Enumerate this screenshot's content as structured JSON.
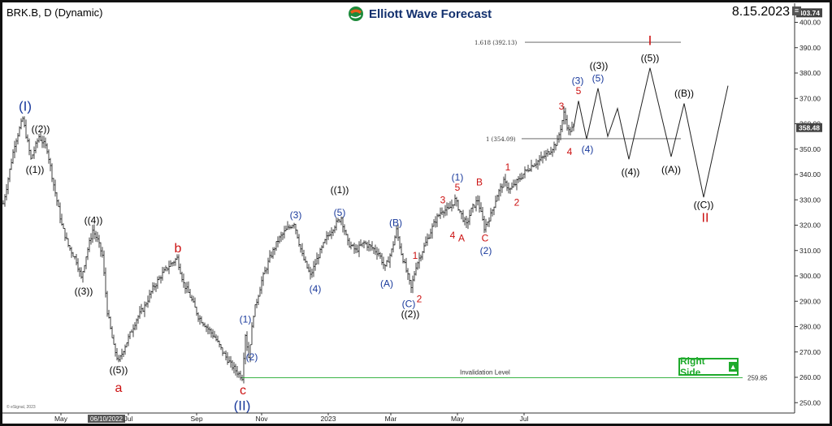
{
  "header": {
    "ticker": "BRK.B, D (Dynamic)",
    "brand": "Elliott Wave Forecast",
    "date": "8.15.2023"
  },
  "right_side_badge": "Right Side",
  "copyright": "© eSignal, 2023",
  "colors": {
    "blue": "#1a3a9c",
    "red": "#cc1111",
    "black": "#000000",
    "green": "#1faa2c"
  },
  "chart_data": {
    "type": "line",
    "subtype": "ohlc-daily-elliott-wave",
    "y_axis": {
      "range": [
        247,
        405
      ],
      "ticks": [
        250,
        260,
        270,
        280,
        290,
        300,
        310,
        320,
        330,
        340,
        350,
        360,
        370,
        380,
        390,
        400
      ],
      "position": "right"
    },
    "x_axis": {
      "labels": [
        "May",
        "06/10/2022",
        "Jul",
        "Sep",
        "Nov",
        "2023",
        "Mar",
        "May",
        "Jul"
      ]
    },
    "price_tags": {
      "high": "403.74",
      "last": "358.48"
    },
    "price_path": [
      [
        0,
        322
      ],
      [
        8,
        335
      ],
      [
        18,
        352
      ],
      [
        28,
        362
      ],
      [
        38,
        346
      ],
      [
        48,
        355
      ],
      [
        58,
        350
      ],
      [
        66,
        336
      ],
      [
        76,
        320
      ],
      [
        84,
        312
      ],
      [
        94,
        306
      ],
      [
        100,
        299
      ],
      [
        106,
        308
      ],
      [
        114,
        318
      ],
      [
        120,
        314
      ],
      [
        126,
        308
      ],
      [
        132,
        286
      ],
      [
        140,
        272
      ],
      [
        146,
        266
      ],
      [
        152,
        271
      ],
      [
        160,
        277
      ],
      [
        168,
        283
      ],
      [
        178,
        288
      ],
      [
        188,
        295
      ],
      [
        198,
        300
      ],
      [
        208,
        304
      ],
      [
        218,
        307
      ],
      [
        226,
        297
      ],
      [
        234,
        292
      ],
      [
        244,
        284
      ],
      [
        254,
        280
      ],
      [
        264,
        276
      ],
      [
        274,
        270
      ],
      [
        284,
        265
      ],
      [
        292,
        262
      ],
      [
        298,
        260
      ],
      [
        302,
        277
      ],
      [
        306,
        268
      ],
      [
        312,
        285
      ],
      [
        322,
        298
      ],
      [
        332,
        307
      ],
      [
        342,
        314
      ],
      [
        352,
        318
      ],
      [
        362,
        321
      ],
      [
        372,
        308
      ],
      [
        382,
        300
      ],
      [
        392,
        308
      ],
      [
        402,
        315
      ],
      [
        412,
        320
      ],
      [
        420,
        323
      ],
      [
        428,
        313
      ],
      [
        438,
        310
      ],
      [
        448,
        313
      ],
      [
        458,
        311
      ],
      [
        466,
        309
      ],
      [
        474,
        303
      ],
      [
        482,
        310
      ],
      [
        488,
        318
      ],
      [
        494,
        309
      ],
      [
        500,
        302
      ],
      [
        506,
        295
      ],
      [
        512,
        304
      ],
      [
        520,
        310
      ],
      [
        528,
        316
      ],
      [
        536,
        322
      ],
      [
        544,
        326
      ],
      [
        552,
        326
      ],
      [
        560,
        330
      ],
      [
        568,
        324
      ],
      [
        574,
        320
      ],
      [
        580,
        326
      ],
      [
        588,
        330
      ],
      [
        596,
        319
      ],
      [
        604,
        324
      ],
      [
        612,
        332
      ],
      [
        620,
        337
      ],
      [
        628,
        334
      ],
      [
        636,
        337
      ],
      [
        646,
        341
      ],
      [
        656,
        344
      ],
      [
        666,
        346
      ],
      [
        676,
        349
      ],
      [
        686,
        353
      ],
      [
        694,
        364
      ],
      [
        700,
        357
      ],
      [
        706,
        358.5
      ]
    ],
    "projection_path": [
      [
        706,
        358.5
      ],
      [
        712,
        369
      ],
      [
        722,
        354
      ],
      [
        736,
        374
      ],
      [
        748,
        355
      ],
      [
        760,
        366
      ],
      [
        774,
        346
      ],
      [
        800,
        382
      ],
      [
        826,
        347
      ],
      [
        842,
        368
      ],
      [
        866,
        331
      ],
      [
        896,
        375
      ]
    ],
    "levels": [
      {
        "label": "1.618 (392.13)",
        "value": 392.13,
        "x_from": 646,
        "x_to": 838,
        "color": "#555555"
      },
      {
        "label": "1 (354.09)",
        "value": 354.09,
        "x_from": 642,
        "x_to": 838,
        "color": "#555555"
      },
      {
        "label": "Invalidation Level",
        "value_label": "259.85",
        "value": 259.85,
        "x_from": 298,
        "x_to": 914,
        "color": "#1faa2c"
      }
    ],
    "wave_labels": [
      {
        "text": "(I)",
        "x": 31,
        "price": 367,
        "color": "blue",
        "size": 17
      },
      {
        "text": "((2))",
        "x": 50,
        "price": 358,
        "color": "black",
        "size": 12
      },
      {
        "text": "((1))",
        "x": 43,
        "price": 342,
        "color": "black",
        "size": 12
      },
      {
        "text": "((4))",
        "x": 115,
        "price": 322,
        "color": "black",
        "size": 12
      },
      {
        "text": "((3))",
        "x": 103,
        "price": 294,
        "color": "black",
        "size": 12
      },
      {
        "text": "((5))",
        "x": 146,
        "price": 263,
        "color": "black",
        "size": 12
      },
      {
        "text": "a",
        "x": 146,
        "price": 256,
        "color": "red",
        "size": 16
      },
      {
        "text": "b",
        "x": 219,
        "price": 311,
        "color": "red",
        "size": 16
      },
      {
        "text": "(1)",
        "x": 302,
        "price": 283,
        "color": "blue",
        "size": 12
      },
      {
        "text": "(2)",
        "x": 310,
        "price": 268,
        "color": "blue",
        "size": 12
      },
      {
        "text": "c",
        "x": 299,
        "price": 255,
        "color": "red",
        "size": 16
      },
      {
        "text": "(II)",
        "x": 298,
        "price": 249,
        "color": "blue",
        "size": 17
      },
      {
        "text": "(3)",
        "x": 364,
        "price": 324,
        "color": "blue",
        "size": 12
      },
      {
        "text": "(4)",
        "x": 388,
        "price": 295,
        "color": "blue",
        "size": 12
      },
      {
        "text": "((1))",
        "x": 418,
        "price": 334,
        "color": "black",
        "size": 12
      },
      {
        "text": "(5)",
        "x": 418,
        "price": 325,
        "color": "blue",
        "size": 12
      },
      {
        "text": "(B)",
        "x": 487,
        "price": 321,
        "color": "blue",
        "size": 12
      },
      {
        "text": "(A)",
        "x": 476,
        "price": 297,
        "color": "blue",
        "size": 12
      },
      {
        "text": "1",
        "x": 511,
        "price": 308,
        "color": "red",
        "size": 12
      },
      {
        "text": "2",
        "x": 516,
        "price": 291,
        "color": "red",
        "size": 12
      },
      {
        "text": "(C)",
        "x": 503,
        "price": 289,
        "color": "blue",
        "size": 12
      },
      {
        "text": "((2))",
        "x": 505,
        "price": 285,
        "color": "black",
        "size": 12
      },
      {
        "text": "3",
        "x": 545,
        "price": 330,
        "color": "red",
        "size": 12
      },
      {
        "text": "(1)",
        "x": 563,
        "price": 339,
        "color": "blue",
        "size": 12
      },
      {
        "text": "5",
        "x": 563,
        "price": 335,
        "color": "red",
        "size": 12
      },
      {
        "text": "4",
        "x": 557,
        "price": 316,
        "color": "red",
        "size": 12
      },
      {
        "text": "A",
        "x": 568,
        "price": 315,
        "color": "red",
        "size": 12
      },
      {
        "text": "B",
        "x": 590,
        "price": 337,
        "color": "red",
        "size": 12
      },
      {
        "text": "C",
        "x": 597,
        "price": 315,
        "color": "red",
        "size": 12
      },
      {
        "text": "(2)",
        "x": 598,
        "price": 310,
        "color": "blue",
        "size": 12
      },
      {
        "text": "1",
        "x": 625,
        "price": 343,
        "color": "red",
        "size": 12
      },
      {
        "text": "2",
        "x": 636,
        "price": 329,
        "color": "red",
        "size": 12
      },
      {
        "text": "3",
        "x": 691,
        "price": 367,
        "color": "red",
        "size": 12
      },
      {
        "text": "(3)",
        "x": 711,
        "price": 377,
        "color": "blue",
        "size": 12
      },
      {
        "text": "5",
        "x": 712,
        "price": 373,
        "color": "red",
        "size": 12
      },
      {
        "text": "4",
        "x": 701,
        "price": 349,
        "color": "red",
        "size": 12
      },
      {
        "text": "(4)",
        "x": 723,
        "price": 350,
        "color": "blue",
        "size": 12
      },
      {
        "text": "((3))",
        "x": 737,
        "price": 383,
        "color": "black",
        "size": 12
      },
      {
        "text": "(5)",
        "x": 736,
        "price": 378,
        "color": "blue",
        "size": 12
      },
      {
        "text": "((4))",
        "x": 776,
        "price": 341,
        "color": "black",
        "size": 12
      },
      {
        "text": "I",
        "x": 800,
        "price": 393,
        "color": "red",
        "size": 17
      },
      {
        "text": "((5))",
        "x": 800,
        "price": 386,
        "color": "black",
        "size": 12
      },
      {
        "text": "((B))",
        "x": 842,
        "price": 372,
        "color": "black",
        "size": 12
      },
      {
        "text": "((A))",
        "x": 826,
        "price": 342,
        "color": "black",
        "size": 12
      },
      {
        "text": "((C))",
        "x": 866,
        "price": 328,
        "color": "black",
        "size": 12
      },
      {
        "text": "II",
        "x": 868,
        "price": 323,
        "color": "red",
        "size": 16
      }
    ]
  }
}
